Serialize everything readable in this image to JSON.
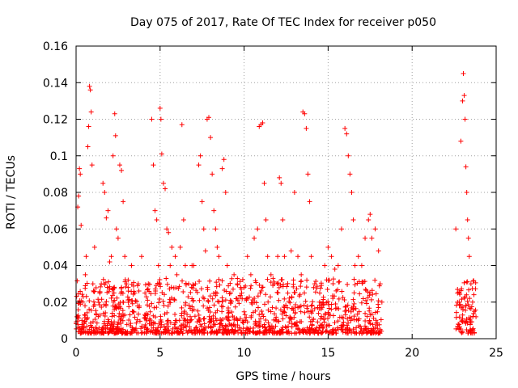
{
  "chart_data": {
    "type": "scatter",
    "title": "Day 075 of 2017, Rate Of TEC Index for receiver p050",
    "xlabel": "GPS time / hours",
    "ylabel": "ROTI / TECUs",
    "xlim": [
      0,
      25
    ],
    "ylim": [
      0,
      0.16
    ],
    "grid": true,
    "marker": "+",
    "color": "#ff0000",
    "xticks": [
      {
        "value": 0,
        "label": "0"
      },
      {
        "value": 5,
        "label": "5"
      },
      {
        "value": 10,
        "label": "10"
      },
      {
        "value": 15,
        "label": "15"
      },
      {
        "value": 20,
        "label": "20"
      },
      {
        "value": 25,
        "label": "25"
      }
    ],
    "yticks": [
      {
        "value": 0,
        "label": "0"
      },
      {
        "value": 0.02,
        "label": "0.02"
      },
      {
        "value": 0.04,
        "label": "0.04"
      },
      {
        "value": 0.06,
        "label": "0.06"
      },
      {
        "value": 0.08,
        "label": "0.08"
      },
      {
        "value": 0.1,
        "label": "0.1"
      },
      {
        "value": 0.12,
        "label": "0.12"
      },
      {
        "value": 0.14,
        "label": "0.14"
      },
      {
        "value": 0.16,
        "label": "0.16"
      }
    ],
    "series": [
      {
        "name": "ROTI",
        "points": [
          [
            0.05,
            0.012
          ],
          [
            0.1,
            0.072
          ],
          [
            0.15,
            0.078
          ],
          [
            0.2,
            0.093
          ],
          [
            0.25,
            0.09
          ],
          [
            0.3,
            0.062
          ],
          [
            0.35,
            0.01
          ],
          [
            0.4,
            0.02
          ],
          [
            0.55,
            0.035
          ],
          [
            0.6,
            0.045
          ],
          [
            0.7,
            0.105
          ],
          [
            0.75,
            0.116
          ],
          [
            0.8,
            0.138
          ],
          [
            0.85,
            0.136
          ],
          [
            0.9,
            0.124
          ],
          [
            0.95,
            0.095
          ],
          [
            1.0,
            0.03
          ],
          [
            1.1,
            0.05
          ],
          [
            1.5,
            0.03
          ],
          [
            1.6,
            0.085
          ],
          [
            1.7,
            0.08
          ],
          [
            1.8,
            0.066
          ],
          [
            1.9,
            0.07
          ],
          [
            2.0,
            0.042
          ],
          [
            2.1,
            0.045
          ],
          [
            2.2,
            0.1
          ],
          [
            2.3,
            0.123
          ],
          [
            2.35,
            0.111
          ],
          [
            2.4,
            0.06
          ],
          [
            2.5,
            0.055
          ],
          [
            2.6,
            0.095
          ],
          [
            2.7,
            0.092
          ],
          [
            2.8,
            0.075
          ],
          [
            2.9,
            0.045
          ],
          [
            3.0,
            0.03
          ],
          [
            3.1,
            0.028
          ],
          [
            3.3,
            0.04
          ],
          [
            3.5,
            0.025
          ],
          [
            3.7,
            0.03
          ],
          [
            3.9,
            0.045
          ],
          [
            4.1,
            0.025
          ],
          [
            4.3,
            0.03
          ],
          [
            4.5,
            0.12
          ],
          [
            4.6,
            0.095
          ],
          [
            4.7,
            0.07
          ],
          [
            4.8,
            0.065
          ],
          [
            4.9,
            0.04
          ],
          [
            5.0,
            0.126
          ],
          [
            5.05,
            0.12
          ],
          [
            5.1,
            0.101
          ],
          [
            5.2,
            0.085
          ],
          [
            5.3,
            0.082
          ],
          [
            5.4,
            0.06
          ],
          [
            5.5,
            0.058
          ],
          [
            5.6,
            0.04
          ],
          [
            5.7,
            0.05
          ],
          [
            5.9,
            0.045
          ],
          [
            6.0,
            0.035
          ],
          [
            6.2,
            0.05
          ],
          [
            6.3,
            0.117
          ],
          [
            6.4,
            0.065
          ],
          [
            6.5,
            0.04
          ],
          [
            6.7,
            0.03
          ],
          [
            6.9,
            0.04
          ],
          [
            7.0,
            0.04
          ],
          [
            7.1,
            0.03
          ],
          [
            7.3,
            0.095
          ],
          [
            7.4,
            0.1
          ],
          [
            7.5,
            0.075
          ],
          [
            7.6,
            0.06
          ],
          [
            7.7,
            0.048
          ],
          [
            7.8,
            0.12
          ],
          [
            7.9,
            0.121
          ],
          [
            8.0,
            0.11
          ],
          [
            8.1,
            0.09
          ],
          [
            8.2,
            0.07
          ],
          [
            8.3,
            0.06
          ],
          [
            8.4,
            0.05
          ],
          [
            8.5,
            0.045
          ],
          [
            8.7,
            0.093
          ],
          [
            8.8,
            0.098
          ],
          [
            8.9,
            0.08
          ],
          [
            9.0,
            0.04
          ],
          [
            9.2,
            0.025
          ],
          [
            9.4,
            0.035
          ],
          [
            9.6,
            0.03
          ],
          [
            9.8,
            0.028
          ],
          [
            10.0,
            0.028
          ],
          [
            10.2,
            0.045
          ],
          [
            10.4,
            0.035
          ],
          [
            10.6,
            0.055
          ],
          [
            10.8,
            0.06
          ],
          [
            10.9,
            0.116
          ],
          [
            11.0,
            0.117
          ],
          [
            11.1,
            0.118
          ],
          [
            11.2,
            0.085
          ],
          [
            11.3,
            0.065
          ],
          [
            11.4,
            0.045
          ],
          [
            11.6,
            0.035
          ],
          [
            11.8,
            0.03
          ],
          [
            12.0,
            0.045
          ],
          [
            12.1,
            0.088
          ],
          [
            12.2,
            0.085
          ],
          [
            12.3,
            0.065
          ],
          [
            12.4,
            0.045
          ],
          [
            12.6,
            0.025
          ],
          [
            12.8,
            0.048
          ],
          [
            13.0,
            0.08
          ],
          [
            13.2,
            0.045
          ],
          [
            13.4,
            0.035
          ],
          [
            13.5,
            0.124
          ],
          [
            13.6,
            0.123
          ],
          [
            13.7,
            0.115
          ],
          [
            13.8,
            0.09
          ],
          [
            13.9,
            0.075
          ],
          [
            14.0,
            0.045
          ],
          [
            14.2,
            0.03
          ],
          [
            14.5,
            0.025
          ],
          [
            14.8,
            0.04
          ],
          [
            15.0,
            0.05
          ],
          [
            15.2,
            0.045
          ],
          [
            15.4,
            0.038
          ],
          [
            15.6,
            0.04
          ],
          [
            15.8,
            0.06
          ],
          [
            16.0,
            0.115
          ],
          [
            16.1,
            0.112
          ],
          [
            16.2,
            0.1
          ],
          [
            16.3,
            0.09
          ],
          [
            16.4,
            0.08
          ],
          [
            16.5,
            0.065
          ],
          [
            16.6,
            0.04
          ],
          [
            16.8,
            0.045
          ],
          [
            17.0,
            0.04
          ],
          [
            17.2,
            0.055
          ],
          [
            17.4,
            0.065
          ],
          [
            17.5,
            0.068
          ],
          [
            17.6,
            0.055
          ],
          [
            17.8,
            0.06
          ],
          [
            18.0,
            0.048
          ],
          [
            18.1,
            0.03
          ],
          [
            18.2,
            0.02
          ],
          [
            22.6,
            0.06
          ],
          [
            22.7,
            0.025
          ],
          [
            22.8,
            0.02
          ],
          [
            22.9,
            0.108
          ],
          [
            23.0,
            0.13
          ],
          [
            23.05,
            0.145
          ],
          [
            23.1,
            0.133
          ],
          [
            23.15,
            0.12
          ],
          [
            23.2,
            0.094
          ],
          [
            23.25,
            0.08
          ],
          [
            23.3,
            0.065
          ],
          [
            23.35,
            0.055
          ],
          [
            23.4,
            0.045
          ],
          [
            23.5,
            0.03
          ],
          [
            23.6,
            0.02
          ],
          [
            23.7,
            0.015
          ],
          [
            23.8,
            0.012
          ]
        ]
      }
    ]
  }
}
